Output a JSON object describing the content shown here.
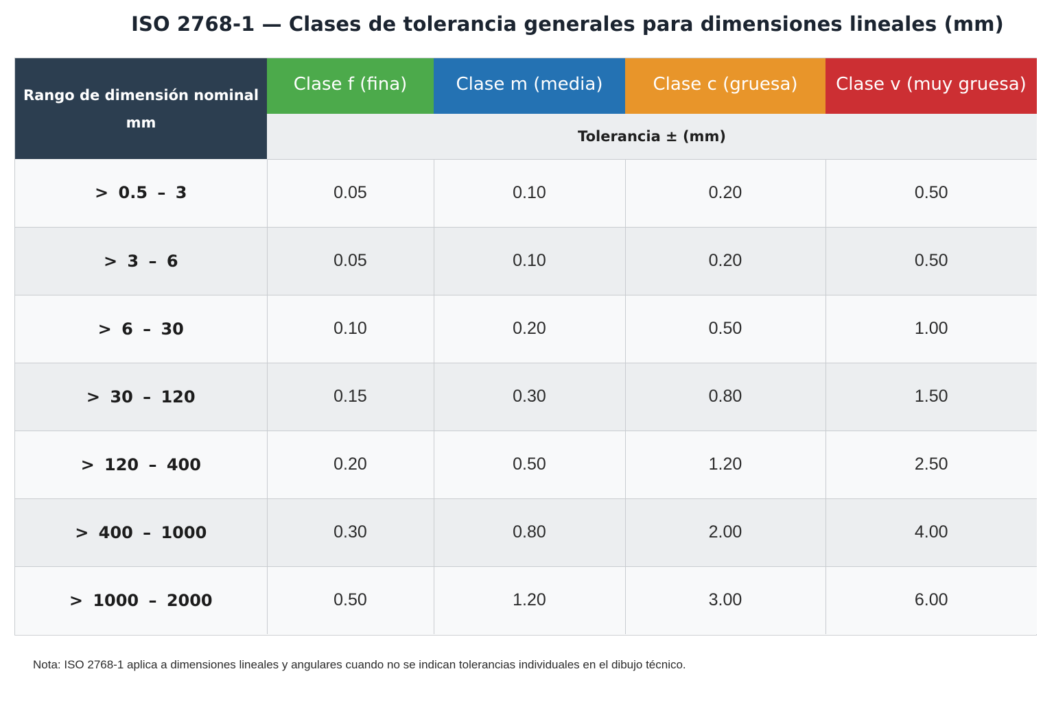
{
  "title": "ISO 2768-1 — Clases de tolerancia generales para dimensiones lineales (mm)",
  "table": {
    "range_header": "Rango de dimensión nominal mm",
    "classes": [
      {
        "label": "Clase f (fina)",
        "color": "#4caa4b"
      },
      {
        "label": "Clase m (media)",
        "color": "#2472b3"
      },
      {
        "label": "Clase c (gruesa)",
        "color": "#e8952a"
      },
      {
        "label": "Clase v (muy gruesa)",
        "color": "#cc2f33"
      }
    ],
    "subheader": "Tolerancia ± (mm)",
    "rows": [
      {
        "range": "> 0.5 – 3",
        "values": [
          "0.05",
          "0.10",
          "0.20",
          "0.50"
        ]
      },
      {
        "range": "> 3 – 6",
        "values": [
          "0.05",
          "0.10",
          "0.20",
          "0.50"
        ]
      },
      {
        "range": "> 6 – 30",
        "values": [
          "0.10",
          "0.20",
          "0.50",
          "1.00"
        ]
      },
      {
        "range": "> 30 – 120",
        "values": [
          "0.15",
          "0.30",
          "0.80",
          "1.50"
        ]
      },
      {
        "range": "> 120 – 400",
        "values": [
          "0.20",
          "0.50",
          "1.20",
          "2.50"
        ]
      },
      {
        "range": "> 400 – 1000",
        "values": [
          "0.30",
          "0.80",
          "2.00",
          "4.00"
        ]
      },
      {
        "range": "> 1000 – 2000",
        "values": [
          "0.50",
          "1.20",
          "3.00",
          "6.00"
        ]
      }
    ]
  },
  "note": "Nota: ISO 2768-1 aplica a dimensiones lineales y angulares cuando no se indican tolerancias individuales en el dibujo técnico."
}
